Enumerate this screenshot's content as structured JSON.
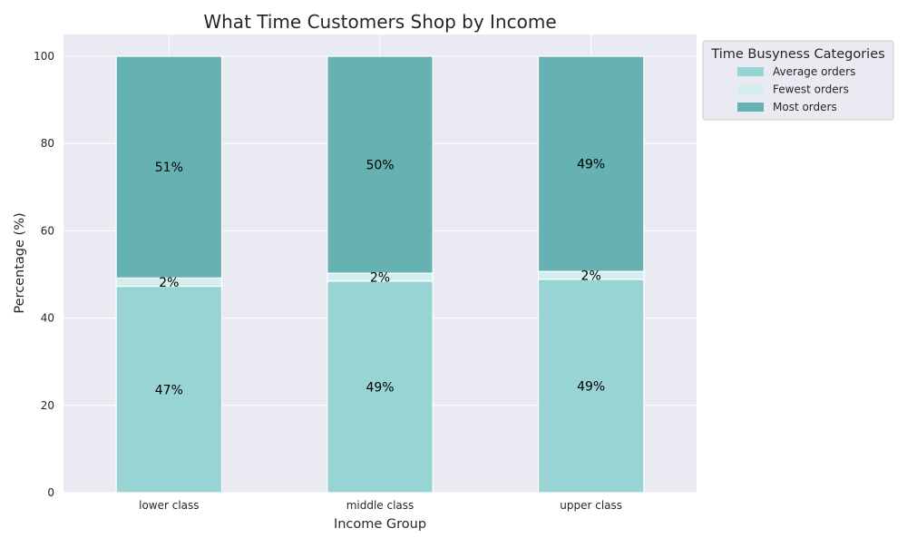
{
  "chart_data": {
    "type": "bar",
    "stacked": true,
    "title": "What Time Customers Shop by Income",
    "xlabel": "Income Group",
    "ylabel": "Percentage (%)",
    "categories": [
      "lower class",
      "middle class",
      "upper class"
    ],
    "series": [
      {
        "name": "Average orders",
        "values": [
          47.3,
          48.5,
          48.9
        ],
        "labels": [
          "47%",
          "49%",
          "49%"
        ],
        "color": "#99d4d4"
      },
      {
        "name": "Fewest orders",
        "values": [
          1.9,
          1.8,
          1.8
        ],
        "labels": [
          "2%",
          "2%",
          "2%"
        ],
        "color": "#d2eeee"
      },
      {
        "name": "Most orders",
        "values": [
          50.8,
          49.7,
          49.3
        ],
        "labels": [
          "51%",
          "50%",
          "49%"
        ],
        "color": "#66b2b2"
      }
    ],
    "ylim": [
      0,
      105
    ],
    "yticks": [
      0,
      20,
      40,
      60,
      80,
      100
    ],
    "grid": true,
    "legend": {
      "title": "Time Busyness Categories",
      "placement": "outside-top-right"
    },
    "colors": {
      "plot_background": "#eaeaf2",
      "grid": "#ffffff",
      "text": "#262626",
      "label_text": "#000000"
    }
  }
}
